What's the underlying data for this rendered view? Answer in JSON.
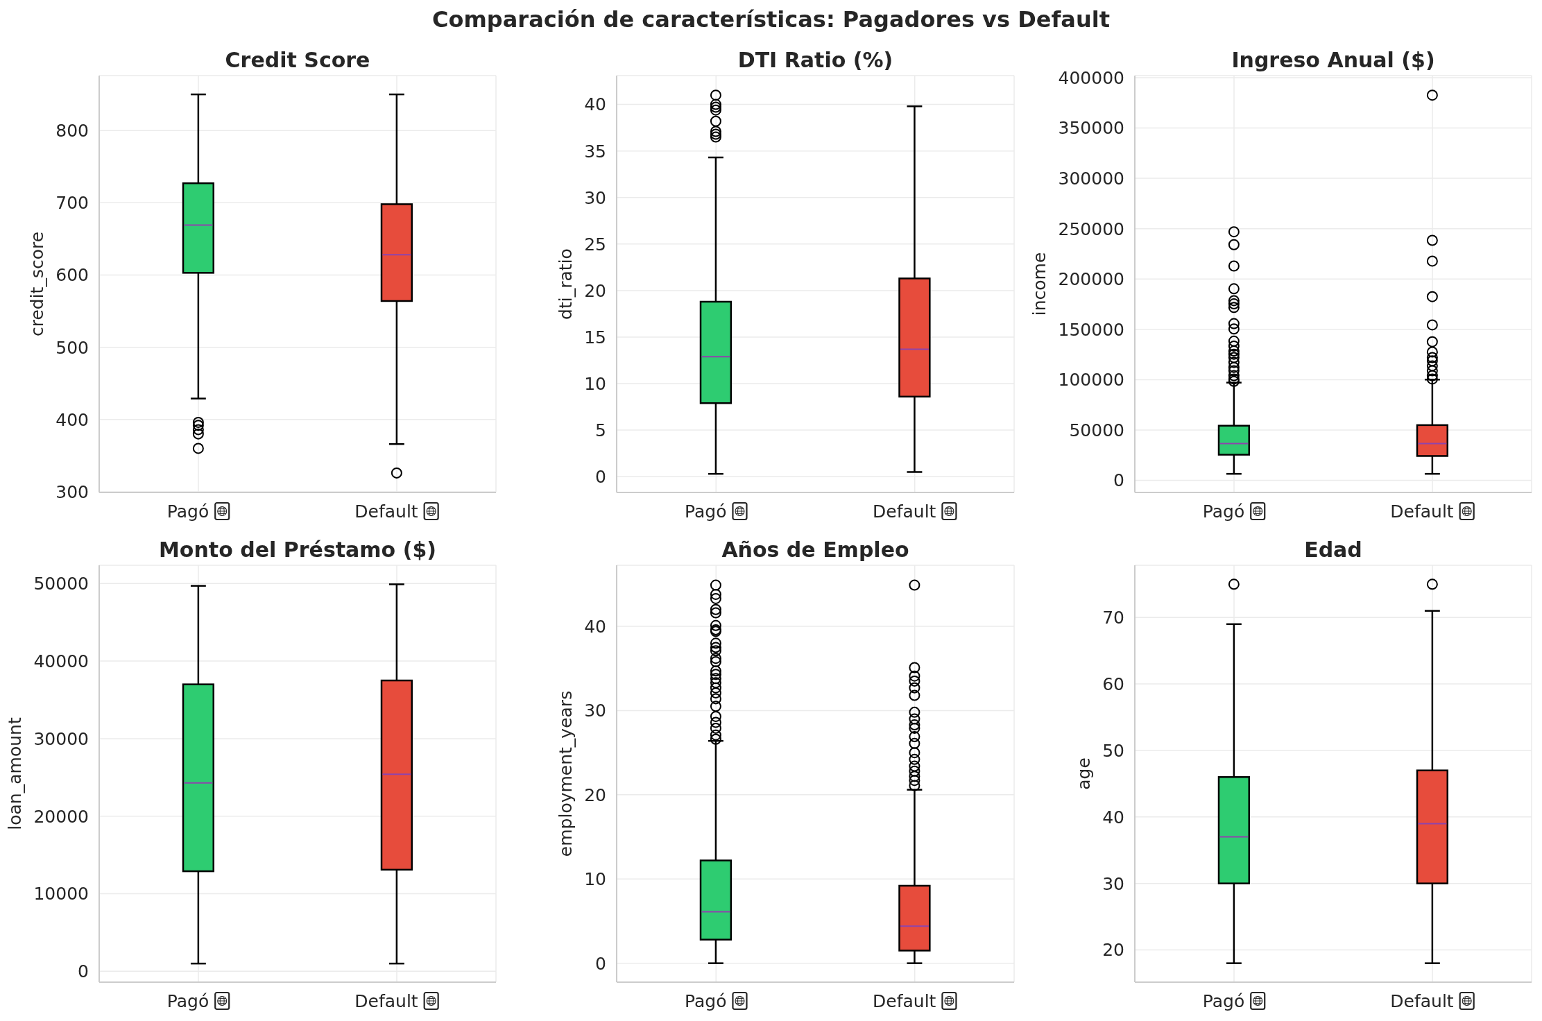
{
  "chart_data": [
    {
      "type": "other",
      "title": "Comparación de características: Pagadores vs Default"
    },
    {
      "type": "box",
      "title": "Credit Score",
      "ylabel": "credit_score",
      "categories": [
        "Pagó",
        "Default"
      ],
      "colors": [
        "#2ecc71",
        "#e74c3c"
      ],
      "boxes": [
        {
          "low": 429,
          "q1": 603,
          "median": 669,
          "q3": 727,
          "high": 850,
          "outliers": [
            396,
            392,
            386,
            380,
            360
          ]
        },
        {
          "low": 366,
          "q1": 564,
          "median": 628,
          "q3": 698,
          "high": 850,
          "outliers": [
            326
          ]
        }
      ],
      "ylim": [
        299,
        876
      ],
      "yticks": [
        300,
        400,
        500,
        600,
        700,
        800
      ],
      "grid": true
    },
    {
      "type": "box",
      "title": "DTI Ratio (%)",
      "ylabel": "dti_ratio",
      "categories": [
        "Pagó",
        "Default"
      ],
      "colors": [
        "#2ecc71",
        "#e74c3c"
      ],
      "boxes": [
        {
          "low": 0.3,
          "q1": 7.9,
          "median": 12.9,
          "q3": 18.8,
          "high": 34.3,
          "outliers": [
            41.0,
            40.0,
            39.7,
            39.4,
            38.2,
            37.1,
            36.8,
            36.5
          ]
        },
        {
          "low": 0.5,
          "q1": 8.6,
          "median": 13.7,
          "q3": 21.3,
          "high": 39.8
        }
      ],
      "ylim": [
        -1.7,
        43.1
      ],
      "yticks": [
        0,
        5,
        10,
        15,
        20,
        25,
        30,
        35,
        40
      ],
      "grid": true
    },
    {
      "type": "box",
      "title": "Ingreso Anual ($)",
      "ylabel": "income",
      "categories": [
        "Pagó",
        "Default"
      ],
      "colors": [
        "#2ecc71",
        "#e74c3c"
      ],
      "boxes": [
        {
          "low": 6500,
          "q1": 25500,
          "median": 36600,
          "q3": 54300,
          "high": 97100,
          "outliers": [
            246900,
            234100,
            212900,
            190300,
            178500,
            175300,
            171700,
            155700,
            150400,
            138300,
            133400,
            128500,
            125300,
            122000,
            117100,
            112200,
            108900,
            104000,
            100700,
            98400
          ]
        },
        {
          "low": 6500,
          "q1": 24200,
          "median": 36600,
          "q3": 54900,
          "high": 100100,
          "outliers": [
            382600,
            238400,
            217800,
            182500,
            154400,
            137700,
            127500,
            122000,
            118700,
            113800,
            108900,
            104000,
            100700
          ]
        }
      ],
      "ylim": [
        -12000,
        402000
      ],
      "yticks": [
        0,
        50000,
        100000,
        150000,
        200000,
        250000,
        300000,
        350000,
        400000
      ],
      "grid": true
    },
    {
      "type": "box",
      "title": "Monto del Préstamo ($)",
      "ylabel": "loan_amount",
      "categories": [
        "Pagó",
        "Default"
      ],
      "colors": [
        "#2ecc71",
        "#e74c3c"
      ],
      "boxes": [
        {
          "low": 1000,
          "q1": 12900,
          "median": 24300,
          "q3": 37000,
          "high": 49700
        },
        {
          "low": 1000,
          "q1": 13100,
          "median": 25400,
          "q3": 37500,
          "high": 49900
        }
      ],
      "ylim": [
        -1400,
        52350
      ],
      "yticks": [
        0,
        10000,
        20000,
        30000,
        40000,
        50000
      ],
      "grid": true
    },
    {
      "type": "box",
      "title": "Años de Empleo",
      "ylabel": "employment_years",
      "categories": [
        "Pagó",
        "Default"
      ],
      "colors": [
        "#2ecc71",
        "#e74c3c"
      ],
      "boxes": [
        {
          "low": 0,
          "q1": 2.8,
          "median": 6.1,
          "q3": 12.2,
          "high": 26.4,
          "outliers": [
            44.9,
            43.8,
            43.3,
            42.0,
            41.6,
            40.1,
            39.6,
            39.4,
            38.0,
            37.5,
            37.1,
            36.2,
            35.8,
            34.7,
            34.3,
            33.8,
            33.3,
            32.7,
            32.1,
            31.4,
            30.5,
            29.3,
            28.6,
            27.9,
            27.1,
            26.6
          ]
        },
        {
          "low": 0,
          "q1": 1.5,
          "median": 4.4,
          "q3": 9.2,
          "high": 20.6,
          "outliers": [
            44.9,
            35.1,
            34.1,
            33.5,
            32.7,
            31.8,
            29.8,
            29.0,
            28.3,
            27.9,
            26.9,
            26.1,
            25.0,
            24.2,
            23.4,
            22.8,
            22.2,
            21.7,
            21.1
          ]
        }
      ],
      "ylim": [
        -2.25,
        47.25
      ],
      "yticks": [
        0,
        10,
        20,
        30,
        40
      ],
      "grid": true
    },
    {
      "type": "box",
      "title": "Edad",
      "ylabel": "age",
      "categories": [
        "Pagó",
        "Default"
      ],
      "colors": [
        "#2ecc71",
        "#e74c3c"
      ],
      "boxes": [
        {
          "low": 18,
          "q1": 30,
          "median": 37,
          "q3": 46,
          "high": 69,
          "outliers": [
            75
          ]
        },
        {
          "low": 18,
          "q1": 30,
          "median": 39,
          "q3": 47,
          "high": 71,
          "outliers": [
            75
          ]
        }
      ],
      "ylim": [
        15.15,
        77.85
      ],
      "yticks": [
        20,
        30,
        40,
        50,
        60,
        70
      ],
      "grid": true
    }
  ]
}
